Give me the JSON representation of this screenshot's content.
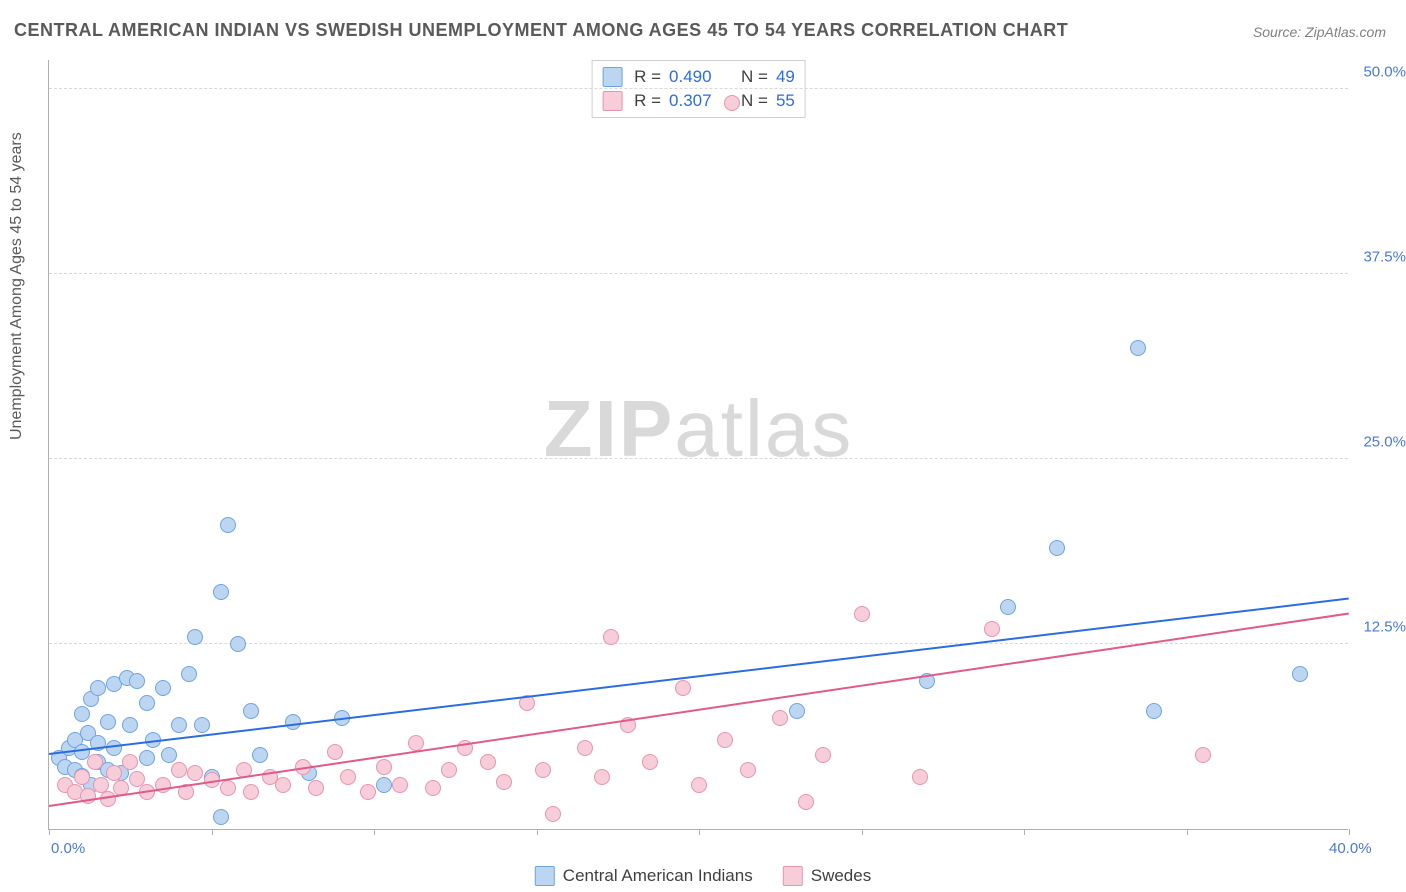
{
  "title": "CENTRAL AMERICAN INDIAN VS SWEDISH UNEMPLOYMENT AMONG AGES 45 TO 54 YEARS CORRELATION CHART",
  "source": "Source: ZipAtlas.com",
  "ylabel": "Unemployment Among Ages 45 to 54 years",
  "watermark_bold": "ZIP",
  "watermark_light": "atlas",
  "chart": {
    "type": "scatter",
    "xlim": [
      0,
      40
    ],
    "ylim": [
      0,
      52
    ],
    "x_ticks": [
      0,
      5,
      10,
      15,
      20,
      25,
      30,
      35,
      40
    ],
    "x_tick_labels": {
      "0": "0.0%",
      "40": "40.0%"
    },
    "y_grid": [
      12.5,
      25.0,
      37.5,
      50.0
    ],
    "y_tick_labels": [
      "12.5%",
      "25.0%",
      "37.5%",
      "50.0%"
    ],
    "background_color": "#ffffff",
    "grid_color": "#d8d8d8",
    "axis_color": "#b0b0b0",
    "label_color": "#4a78d6",
    "marker_radius": 8,
    "series": [
      {
        "name": "Central American Indians",
        "fill": "#bcd6f2",
        "stroke": "#6da3e0",
        "line_color": "#2b6de0",
        "r": "0.490",
        "n": "49",
        "trend": {
          "x1": 0,
          "y1": 5.0,
          "x2": 40,
          "y2": 15.5
        },
        "points": [
          [
            0.3,
            4.8
          ],
          [
            0.5,
            4.2
          ],
          [
            0.6,
            5.5
          ],
          [
            0.8,
            4.0
          ],
          [
            0.8,
            6.0
          ],
          [
            1.0,
            3.6
          ],
          [
            1.0,
            5.2
          ],
          [
            1.0,
            7.8
          ],
          [
            1.2,
            6.5
          ],
          [
            1.3,
            3.0
          ],
          [
            1.3,
            8.8
          ],
          [
            1.5,
            4.5
          ],
          [
            1.5,
            5.8
          ],
          [
            1.5,
            9.5
          ],
          [
            1.8,
            4.0
          ],
          [
            1.8,
            7.2
          ],
          [
            2.0,
            5.5
          ],
          [
            2.0,
            9.8
          ],
          [
            2.2,
            3.8
          ],
          [
            2.4,
            10.2
          ],
          [
            2.5,
            7.0
          ],
          [
            2.7,
            10.0
          ],
          [
            3.0,
            4.8
          ],
          [
            3.0,
            8.5
          ],
          [
            3.2,
            6.0
          ],
          [
            3.5,
            9.5
          ],
          [
            3.7,
            5.0
          ],
          [
            4.0,
            7.0
          ],
          [
            4.3,
            10.5
          ],
          [
            4.5,
            13.0
          ],
          [
            4.7,
            7.0
          ],
          [
            5.0,
            3.5
          ],
          [
            5.3,
            16.0
          ],
          [
            5.5,
            20.5
          ],
          [
            5.8,
            12.5
          ],
          [
            5.3,
            0.8
          ],
          [
            6.2,
            8.0
          ],
          [
            6.5,
            5.0
          ],
          [
            7.5,
            7.2
          ],
          [
            8.0,
            3.8
          ],
          [
            9.0,
            7.5
          ],
          [
            10.3,
            3.0
          ],
          [
            23.0,
            8.0
          ],
          [
            27.0,
            10.0
          ],
          [
            29.5,
            15.0
          ],
          [
            31.0,
            19.0
          ],
          [
            33.5,
            32.5
          ],
          [
            34.0,
            8.0
          ],
          [
            38.5,
            10.5
          ]
        ]
      },
      {
        "name": "Swedes",
        "fill": "#f6cdd9",
        "stroke": "#e794ad",
        "line_color": "#e05a8a",
        "r": "0.307",
        "n": "55",
        "trend": {
          "x1": 0,
          "y1": 1.5,
          "x2": 40,
          "y2": 14.5
        },
        "points": [
          [
            0.5,
            3.0
          ],
          [
            0.8,
            2.5
          ],
          [
            1.0,
            3.5
          ],
          [
            1.2,
            2.2
          ],
          [
            1.4,
            4.5
          ],
          [
            1.6,
            3.0
          ],
          [
            1.8,
            2.0
          ],
          [
            2.0,
            3.8
          ],
          [
            2.2,
            2.8
          ],
          [
            2.5,
            4.5
          ],
          [
            2.7,
            3.4
          ],
          [
            3.0,
            2.5
          ],
          [
            3.5,
            3.0
          ],
          [
            4.0,
            4.0
          ],
          [
            4.2,
            2.5
          ],
          [
            4.5,
            3.8
          ],
          [
            5.0,
            3.3
          ],
          [
            5.5,
            2.8
          ],
          [
            6.0,
            4.0
          ],
          [
            6.2,
            2.5
          ],
          [
            6.8,
            3.5
          ],
          [
            7.2,
            3.0
          ],
          [
            7.8,
            4.2
          ],
          [
            8.2,
            2.8
          ],
          [
            8.8,
            5.2
          ],
          [
            9.2,
            3.5
          ],
          [
            9.8,
            2.5
          ],
          [
            10.3,
            4.2
          ],
          [
            10.8,
            3.0
          ],
          [
            11.3,
            5.8
          ],
          [
            11.8,
            2.8
          ],
          [
            12.3,
            4.0
          ],
          [
            12.8,
            5.5
          ],
          [
            13.5,
            4.5
          ],
          [
            14.0,
            3.2
          ],
          [
            14.7,
            8.5
          ],
          [
            15.2,
            4.0
          ],
          [
            15.5,
            1.0
          ],
          [
            16.5,
            5.5
          ],
          [
            17.0,
            3.5
          ],
          [
            17.3,
            13.0
          ],
          [
            17.8,
            7.0
          ],
          [
            18.5,
            4.5
          ],
          [
            19.5,
            9.5
          ],
          [
            20.0,
            3.0
          ],
          [
            20.8,
            6.0
          ],
          [
            21.5,
            4.0
          ],
          [
            22.5,
            7.5
          ],
          [
            23.3,
            1.8
          ],
          [
            23.8,
            5.0
          ],
          [
            25.0,
            14.5
          ],
          [
            26.8,
            3.5
          ],
          [
            29.0,
            13.5
          ],
          [
            35.5,
            5.0
          ],
          [
            21.0,
            49.0
          ]
        ]
      }
    ]
  },
  "bottom_legend": [
    {
      "label": "Central American Indians",
      "fill": "#bcd6f2",
      "stroke": "#6da3e0"
    },
    {
      "label": "Swedes",
      "fill": "#f6cdd9",
      "stroke": "#e794ad"
    }
  ]
}
